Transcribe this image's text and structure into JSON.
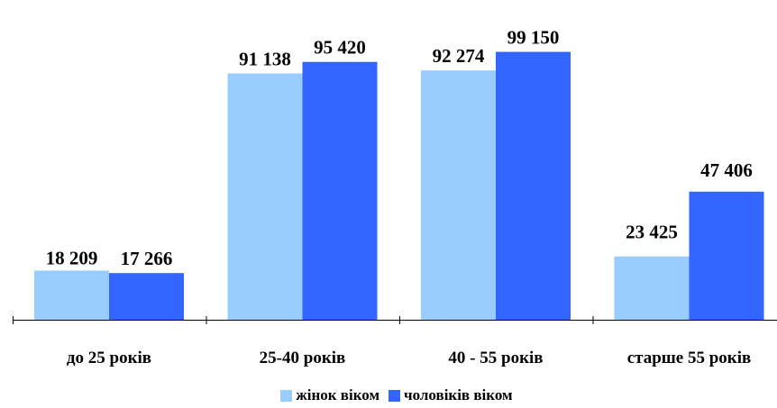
{
  "chart_data": {
    "type": "bar",
    "categories": [
      "до 25 років",
      "25-40 років",
      "40 - 55 років",
      "старше 55 років"
    ],
    "series": [
      {
        "name": "жінок віком",
        "values": [
          18209,
          91138,
          92274,
          23425
        ],
        "labels": [
          "18 209",
          "91 138",
          "92 274",
          "23 425"
        ],
        "color": "#99ccff"
      },
      {
        "name": "чоловіків віком",
        "values": [
          17266,
          95420,
          99150,
          47406
        ],
        "labels": [
          "17 266",
          "95 420",
          "99 150",
          "47 406"
        ],
        "color": "#3366ff"
      }
    ],
    "ylim": [
      0,
      110000
    ],
    "grid": false,
    "legend_position": "bottom"
  }
}
